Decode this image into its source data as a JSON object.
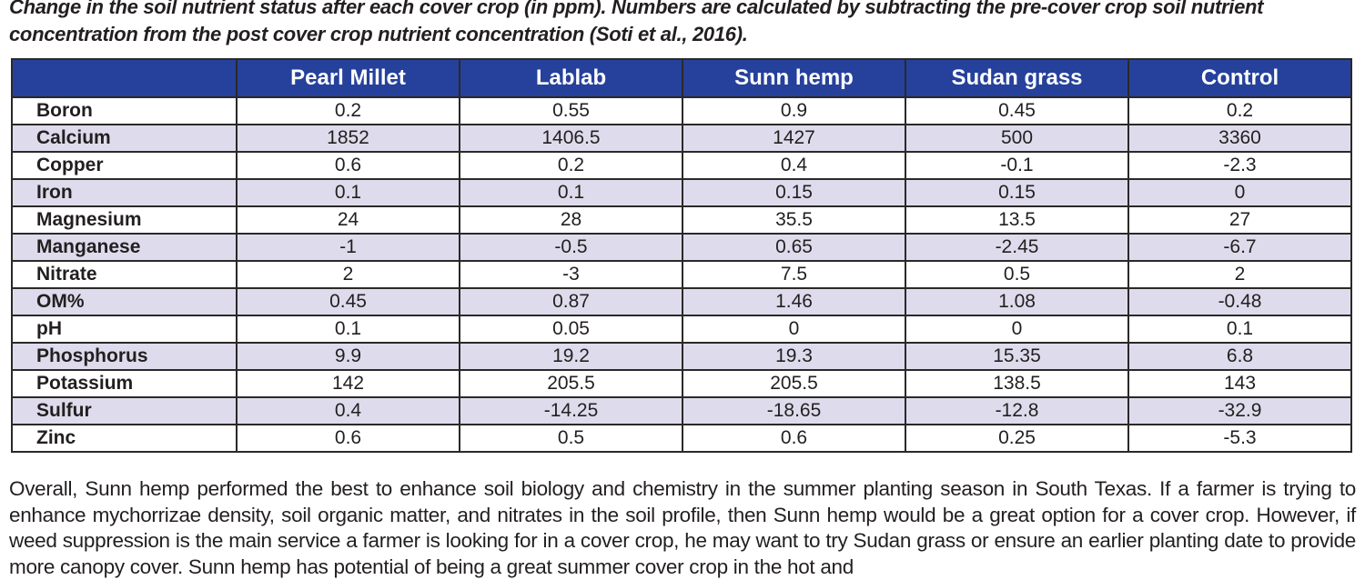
{
  "caption": "Change in the soil nutrient status after each cover crop (in ppm). Numbers are calculated by subtracting the pre-cover crop soil nutrient concentration from the post cover crop nutrient concentration (Soti et al., 2016).",
  "table": {
    "columns": [
      "",
      "Pearl Millet",
      "Lablab",
      "Sunn hemp",
      "Sudan grass",
      "Control"
    ],
    "rows": [
      {
        "label": "Boron",
        "values": [
          "0.2",
          "0.55",
          "0.9",
          "0.45",
          "0.2"
        ]
      },
      {
        "label": "Calcium",
        "values": [
          "1852",
          "1406.5",
          "1427",
          "500",
          "3360"
        ]
      },
      {
        "label": "Copper",
        "values": [
          "0.6",
          "0.2",
          "0.4",
          "-0.1",
          "-2.3"
        ]
      },
      {
        "label": "Iron",
        "values": [
          "0.1",
          "0.1",
          "0.15",
          "0.15",
          "0"
        ]
      },
      {
        "label": "Magnesium",
        "values": [
          "24",
          "28",
          "35.5",
          "13.5",
          "27"
        ]
      },
      {
        "label": "Manganese",
        "values": [
          "-1",
          "-0.5",
          "0.65",
          "-2.45",
          "-6.7"
        ]
      },
      {
        "label": "Nitrate",
        "values": [
          "2",
          "-3",
          "7.5",
          "0.5",
          "2"
        ]
      },
      {
        "label": "OM%",
        "values": [
          "0.45",
          "0.87",
          "1.46",
          "1.08",
          "-0.48"
        ]
      },
      {
        "label": "pH",
        "values": [
          "0.1",
          "0.05",
          "0",
          "0",
          "0.1"
        ]
      },
      {
        "label": "Phosphorus",
        "values": [
          "9.9",
          "19.2",
          "19.3",
          "15.35",
          "6.8"
        ]
      },
      {
        "label": "Potassium",
        "values": [
          "142",
          "205.5",
          "205.5",
          "138.5",
          "143"
        ]
      },
      {
        "label": "Sulfur",
        "values": [
          "0.4",
          "-14.25",
          "-18.65",
          "-12.8",
          "-32.9"
        ]
      },
      {
        "label": "Zinc",
        "values": [
          "0.6",
          "0.5",
          "0.6",
          "0.25",
          "-5.3"
        ]
      }
    ]
  },
  "paragraph": "Overall, Sunn hemp performed the best to enhance soil biology and chemistry in the summer planting season in South Texas. If a farmer is trying to enhance mychorrizae density, soil organic matter, and nitrates in the soil profile, then Sunn hemp would be a great option for a cover crop. However, if weed suppression is the main service a farmer is looking for in a cover crop, he may want to try Sudan grass or ensure an earlier planting date to provide more canopy cover. Sunn hemp has potential of being a great summer cover crop in the hot and",
  "colors": {
    "header_bg": "#26419B",
    "header_text": "#FFFFFF",
    "stripe_bg": "#DEDCEC",
    "border": "#2B2828",
    "text": "#231F20"
  }
}
